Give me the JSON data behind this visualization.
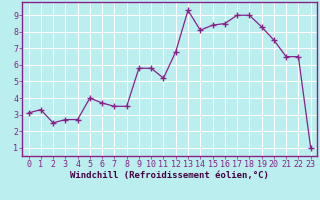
{
  "x": [
    0,
    1,
    2,
    3,
    4,
    5,
    6,
    7,
    8,
    9,
    10,
    11,
    12,
    13,
    14,
    15,
    16,
    17,
    18,
    19,
    20,
    21,
    22,
    23
  ],
  "y": [
    3.1,
    3.3,
    2.5,
    2.7,
    2.7,
    4.0,
    3.7,
    3.5,
    3.5,
    5.8,
    5.8,
    5.2,
    6.8,
    9.3,
    8.1,
    8.4,
    8.5,
    9.0,
    9.0,
    8.3,
    7.5,
    6.5,
    6.5,
    1.0
  ],
  "xlim": [
    -0.5,
    23.5
  ],
  "ylim": [
    0.5,
    9.8
  ],
  "xticks": [
    0,
    1,
    2,
    3,
    4,
    5,
    6,
    7,
    8,
    9,
    10,
    11,
    12,
    13,
    14,
    15,
    16,
    17,
    18,
    19,
    20,
    21,
    22,
    23
  ],
  "yticks": [
    1,
    2,
    3,
    4,
    5,
    6,
    7,
    8,
    9
  ],
  "xlabel": "Windchill (Refroidissement éolien,°C)",
  "line_color": "#882288",
  "marker": "+",
  "bg_color": "#bbeeee",
  "grid_color": "#ffffff",
  "spine_color": "#882288",
  "axis_label_color": "#440044",
  "tick_label_color": "#882288",
  "font_size_xlabel": 6.5,
  "font_size_ticks": 6.0,
  "marker_size": 4,
  "linewidth": 0.9
}
